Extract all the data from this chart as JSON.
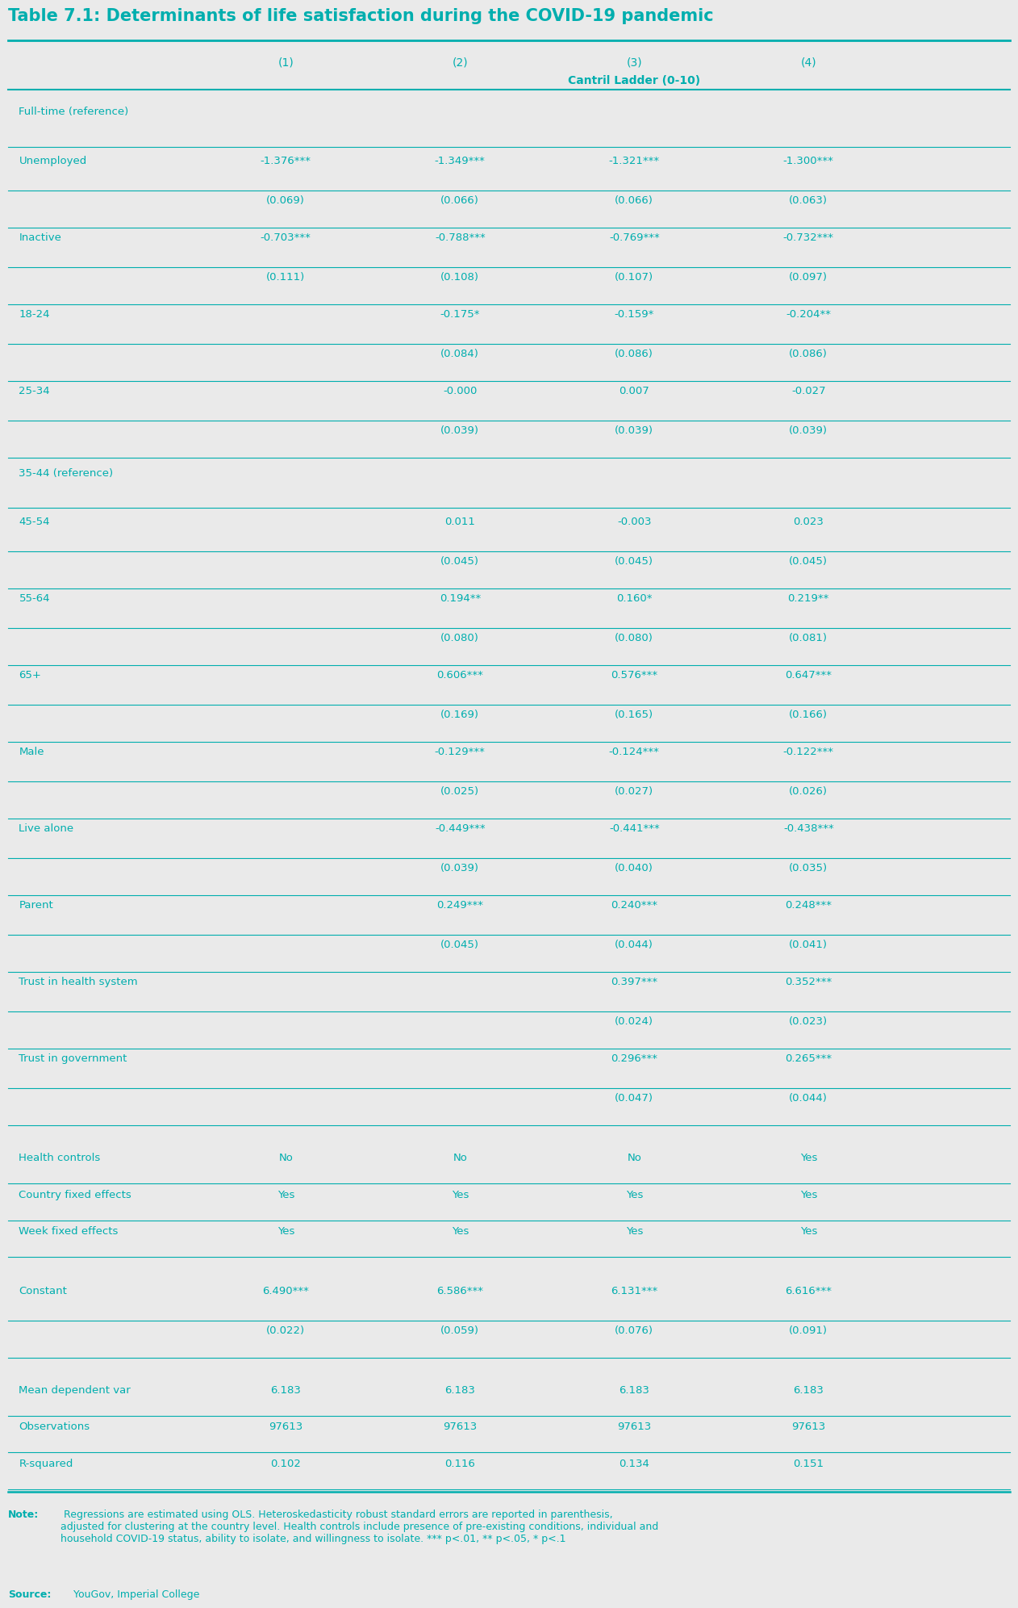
{
  "title": "Table 7.1: Determinants of life satisfaction during the COVID-19 pandemic",
  "teal": "#00AEAE",
  "bg_color": "#EAEAEA",
  "col_headers": [
    "(1)",
    "(2)",
    "(3)",
    "(4)"
  ],
  "col_subheader": "Cantril Ladder (0-10)",
  "rows": [
    {
      "label": "Full-time (reference)",
      "values": [
        "",
        "",
        "",
        ""
      ],
      "is_ref": true,
      "extra_space_before": false
    },
    {
      "label": "Unemployed",
      "values": [
        "-1.376***",
        "-1.349***",
        "-1.321***",
        "-1.300***"
      ],
      "se": [
        "(0.069)",
        "(0.066)",
        "(0.066)",
        "(0.063)"
      ],
      "is_ref": false,
      "extra_space_before": true
    },
    {
      "label": "Inactive",
      "values": [
        "-0.703***",
        "-0.788***",
        "-0.769***",
        "-0.732***"
      ],
      "se": [
        "(0.111)",
        "(0.108)",
        "(0.107)",
        "(0.097)"
      ],
      "is_ref": false,
      "extra_space_before": false
    },
    {
      "label": "18-24",
      "values": [
        "",
        "-0.175*",
        "-0.159*",
        "-0.204**"
      ],
      "se": [
        "",
        "(0.084)",
        "(0.086)",
        "(0.086)"
      ],
      "is_ref": false,
      "extra_space_before": false
    },
    {
      "label": "25-34",
      "values": [
        "",
        "-0.000",
        "0.007",
        "-0.027"
      ],
      "se": [
        "",
        "(0.039)",
        "(0.039)",
        "(0.039)"
      ],
      "is_ref": false,
      "extra_space_before": false
    },
    {
      "label": "35-44 (reference)",
      "values": [
        "",
        "",
        "",
        ""
      ],
      "is_ref": true,
      "extra_space_before": false
    },
    {
      "label": "45-54",
      "values": [
        "",
        "0.011",
        "-0.003",
        "0.023"
      ],
      "se": [
        "",
        "(0.045)",
        "(0.045)",
        "(0.045)"
      ],
      "is_ref": false,
      "extra_space_before": true
    },
    {
      "label": "55-64",
      "values": [
        "",
        "0.194**",
        "0.160*",
        "0.219**"
      ],
      "se": [
        "",
        "(0.080)",
        "(0.080)",
        "(0.081)"
      ],
      "is_ref": false,
      "extra_space_before": false
    },
    {
      "label": "65+",
      "values": [
        "",
        "0.606***",
        "0.576***",
        "0.647***"
      ],
      "se": [
        "",
        "(0.169)",
        "(0.165)",
        "(0.166)"
      ],
      "is_ref": false,
      "extra_space_before": false
    },
    {
      "label": "Male",
      "values": [
        "",
        "-0.129***",
        "-0.124***",
        "-0.122***"
      ],
      "se": [
        "",
        "(0.025)",
        "(0.027)",
        "(0.026)"
      ],
      "is_ref": false,
      "extra_space_before": false
    },
    {
      "label": "Live alone",
      "values": [
        "",
        "-0.449***",
        "-0.441***",
        "-0.438***"
      ],
      "se": [
        "",
        "(0.039)",
        "(0.040)",
        "(0.035)"
      ],
      "is_ref": false,
      "extra_space_before": false
    },
    {
      "label": "Parent",
      "values": [
        "",
        "0.249***",
        "0.240***",
        "0.248***"
      ],
      "se": [
        "",
        "(0.045)",
        "(0.044)",
        "(0.041)"
      ],
      "is_ref": false,
      "extra_space_before": false
    },
    {
      "label": "Trust in health system",
      "values": [
        "",
        "",
        "0.397***",
        "0.352***"
      ],
      "se": [
        "",
        "",
        "(0.024)",
        "(0.023)"
      ],
      "is_ref": false,
      "extra_space_before": false
    },
    {
      "label": "Trust in government",
      "values": [
        "",
        "",
        "0.296***",
        "0.265***"
      ],
      "se": [
        "",
        "",
        "(0.047)",
        "(0.044)"
      ],
      "is_ref": false,
      "extra_space_before": false
    },
    {
      "label": "SPACER",
      "values": [
        "",
        "",
        "",
        ""
      ],
      "is_spacer": true
    },
    {
      "label": "Health controls",
      "values": [
        "No",
        "No",
        "No",
        "Yes"
      ],
      "is_bottom": true
    },
    {
      "label": "Country fixed effects",
      "values": [
        "Yes",
        "Yes",
        "Yes",
        "Yes"
      ],
      "is_bottom": true
    },
    {
      "label": "Week fixed effects",
      "values": [
        "Yes",
        "Yes",
        "Yes",
        "Yes"
      ],
      "is_bottom": true
    },
    {
      "label": "SPACER2",
      "values": [
        "",
        "",
        "",
        ""
      ],
      "is_spacer": true
    },
    {
      "label": "Constant",
      "values": [
        "6.490***",
        "6.586***",
        "6.131***",
        "6.616***"
      ],
      "se": [
        "(0.022)",
        "(0.059)",
        "(0.076)",
        "(0.091)"
      ],
      "is_ref": false,
      "extra_space_before": false
    },
    {
      "label": "SPACER3",
      "values": [
        "",
        "",
        "",
        ""
      ],
      "is_spacer": true
    },
    {
      "label": "Mean dependent var",
      "values": [
        "6.183",
        "6.183",
        "6.183",
        "6.183"
      ],
      "is_bottom": true
    },
    {
      "label": "Observations",
      "values": [
        "97613",
        "97613",
        "97613",
        "97613"
      ],
      "is_bottom": true
    },
    {
      "label": "R-squared",
      "values": [
        "0.102",
        "0.116",
        "0.134",
        "0.151"
      ],
      "is_bottom": true
    }
  ],
  "note_bold": "Note:",
  "note_text": " Regressions are estimated using OLS. Heteroskedasticity robust standard errors are reported in parenthesis,\nadjusted for clustering at the country level. Health controls include presence of pre-existing conditions, individual and\nhousehold COVID-19 status, ability to isolate, and willingness to isolate. *** p<.01, ** p<.05, * p<.1",
  "source_bold": "Source:",
  "source_text": " YouGov, Imperial College"
}
